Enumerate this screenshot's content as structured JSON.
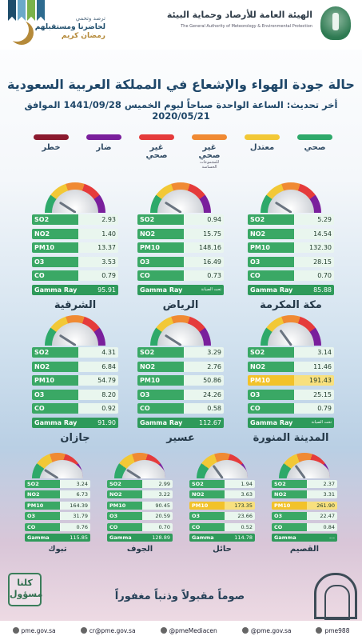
{
  "header": {
    "org_ar": "الهيئة العامة للأرصاد وحماية البيئة",
    "org_en": "The General Authority of Meteorology & Environmental Protection",
    "ramadan_line1": "ترصد وتحمي",
    "ramadan_line2": "لحاضرنا ومستقبلهم",
    "ramadan_line3": "رمضان كريم"
  },
  "title": "حالة جودة الهواء والإشعاع في المملكة العربية السعودية",
  "update": "أخر تحديث: الساعة الواحدة صباحاً ليوم الخميس 1441/09/28 الموافق 2020/05/21",
  "legend": [
    {
      "label": "صحي",
      "sub": "",
      "color": "#2ea96a"
    },
    {
      "label": "معتدل",
      "sub": "",
      "color": "#f2c836"
    },
    {
      "label": "غير صحي",
      "sub": "للمجموعات الحساسة",
      "color": "#f08a33"
    },
    {
      "label": "غير صحي",
      "sub": "",
      "color": "#e53b3b"
    },
    {
      "label": "ضار",
      "sub": "",
      "color": "#7a1f9c"
    },
    {
      "label": "خطر",
      "sub": "",
      "color": "#8b1a2e"
    }
  ],
  "maintenance_note": "تحت الصيانة",
  "stations": [
    {
      "city": "مكة المكرمة",
      "gauge_level": 0.18,
      "rows": [
        {
          "k": "SO2",
          "v": "5.29",
          "s": "g"
        },
        {
          "k": "NO2",
          "v": "14.54",
          "s": "g"
        },
        {
          "k": "PM10",
          "v": "132.30",
          "s": "g"
        },
        {
          "k": "O3",
          "v": "28.15",
          "s": "g"
        },
        {
          "k": "CO",
          "v": "0.70",
          "s": "g"
        },
        {
          "k": "Gamma Ray",
          "v": "85.88",
          "s": "gr"
        }
      ]
    },
    {
      "city": "الرياض",
      "gauge_level": 0.18,
      "rows": [
        {
          "k": "SO2",
          "v": "0.94",
          "s": "g"
        },
        {
          "k": "NO2",
          "v": "15.75",
          "s": "g"
        },
        {
          "k": "PM10",
          "v": "148.16",
          "s": "g"
        },
        {
          "k": "O3",
          "v": "16.49",
          "s": "g"
        },
        {
          "k": "CO",
          "v": "0.73",
          "s": "g"
        },
        {
          "k": "Gamma Ray",
          "v": "",
          "s": "gr",
          "note": true
        }
      ]
    },
    {
      "city": "الشرقية",
      "gauge_level": 0.18,
      "rows": [
        {
          "k": "SO2",
          "v": "2.93",
          "s": "g"
        },
        {
          "k": "NO2",
          "v": "1.40",
          "s": "g"
        },
        {
          "k": "PM10",
          "v": "13.37",
          "s": "g"
        },
        {
          "k": "O3",
          "v": "3.53",
          "s": "g"
        },
        {
          "k": "CO",
          "v": "0.79",
          "s": "g"
        },
        {
          "k": "Gamma Ray",
          "v": "95.91",
          "s": "gr"
        }
      ]
    },
    {
      "city": "المدينة المنورة",
      "gauge_level": 0.3,
      "rows": [
        {
          "k": "SO2",
          "v": "3.14",
          "s": "g"
        },
        {
          "k": "NO2",
          "v": "11.46",
          "s": "g"
        },
        {
          "k": "PM10",
          "v": "191.43",
          "s": "y"
        },
        {
          "k": "O3",
          "v": "25.15",
          "s": "g"
        },
        {
          "k": "CO",
          "v": "0.79",
          "s": "g"
        },
        {
          "k": "Gamma Ray",
          "v": "",
          "s": "gr",
          "note": true
        }
      ]
    },
    {
      "city": "عسير",
      "gauge_level": 0.18,
      "rows": [
        {
          "k": "SO2",
          "v": "3.29",
          "s": "g"
        },
        {
          "k": "NO2",
          "v": "2.76",
          "s": "g"
        },
        {
          "k": "PM10",
          "v": "50.86",
          "s": "g"
        },
        {
          "k": "O3",
          "v": "24.26",
          "s": "g"
        },
        {
          "k": "CO",
          "v": "0.58",
          "s": "g"
        },
        {
          "k": "Gamma Ray",
          "v": "112.67",
          "s": "gr"
        }
      ]
    },
    {
      "city": "جازان",
      "gauge_level": 0.18,
      "rows": [
        {
          "k": "SO2",
          "v": "4.31",
          "s": "g"
        },
        {
          "k": "NO2",
          "v": "6.84",
          "s": "g"
        },
        {
          "k": "PM10",
          "v": "54.79",
          "s": "g"
        },
        {
          "k": "O3",
          "v": "8.20",
          "s": "g"
        },
        {
          "k": "CO",
          "v": "0.92",
          "s": "g"
        },
        {
          "k": "Gamma Ray",
          "v": "91.90",
          "s": "gr"
        }
      ]
    },
    {
      "city": "القصيم",
      "gauge_level": 0.3,
      "rows": [
        {
          "k": "SO2",
          "v": "2.37",
          "s": "g"
        },
        {
          "k": "NO2",
          "v": "3.31",
          "s": "g"
        },
        {
          "k": "PM10",
          "v": "261.90",
          "s": "y"
        },
        {
          "k": "O3",
          "v": "22.47",
          "s": "g"
        },
        {
          "k": "CO",
          "v": "0.84",
          "s": "g"
        },
        {
          "k": "Gamma Ray",
          "v": "---",
          "s": "gr"
        }
      ]
    },
    {
      "city": "حائل",
      "gauge_level": 0.3,
      "rows": [
        {
          "k": "SO2",
          "v": "1.94",
          "s": "g"
        },
        {
          "k": "NO2",
          "v": "3.63",
          "s": "g"
        },
        {
          "k": "PM10",
          "v": "173.35",
          "s": "y"
        },
        {
          "k": "O3",
          "v": "23.66",
          "s": "g"
        },
        {
          "k": "CO",
          "v": "0.52",
          "s": "g"
        },
        {
          "k": "Gamma Ray",
          "v": "114.78",
          "s": "gr"
        }
      ]
    },
    {
      "city": "الجوف",
      "gauge_level": 0.18,
      "rows": [
        {
          "k": "SO2",
          "v": "2.99",
          "s": "g"
        },
        {
          "k": "NO2",
          "v": "3.22",
          "s": "g"
        },
        {
          "k": "PM10",
          "v": "90.45",
          "s": "g"
        },
        {
          "k": "O3",
          "v": "20.59",
          "s": "g"
        },
        {
          "k": "CO",
          "v": "0.70",
          "s": "g"
        },
        {
          "k": "Gamma Ray",
          "v": "128.89",
          "s": "gr"
        }
      ]
    },
    {
      "city": "تبوك",
      "gauge_level": 0.18,
      "rows": [
        {
          "k": "SO2",
          "v": "3.24",
          "s": "g"
        },
        {
          "k": "NO2",
          "v": "6.73",
          "s": "g"
        },
        {
          "k": "PM10",
          "v": "164.39",
          "s": "g"
        },
        {
          "k": "O3",
          "v": "31.79",
          "s": "g"
        },
        {
          "k": "CO",
          "v": "0.76",
          "s": "g"
        },
        {
          "k": "Gamma Ray",
          "v": "115.85",
          "s": "gr"
        }
      ]
    }
  ],
  "slogan": "صوماً مقبولاً وذنباً مغفوراً",
  "badge_text": "كلنا مسؤول",
  "footer": [
    {
      "icon": "globe-icon",
      "text": "pme.gov.sa"
    },
    {
      "icon": "mail-icon",
      "text": "cr@pme.gov.sa"
    },
    {
      "icon": "instagram-icon",
      "text": "@pmeMediacen"
    },
    {
      "icon": "twitter-icon",
      "text": "@pme.gov.sa"
    },
    {
      "icon": "snapchat-icon",
      "text": "pme988"
    }
  ]
}
